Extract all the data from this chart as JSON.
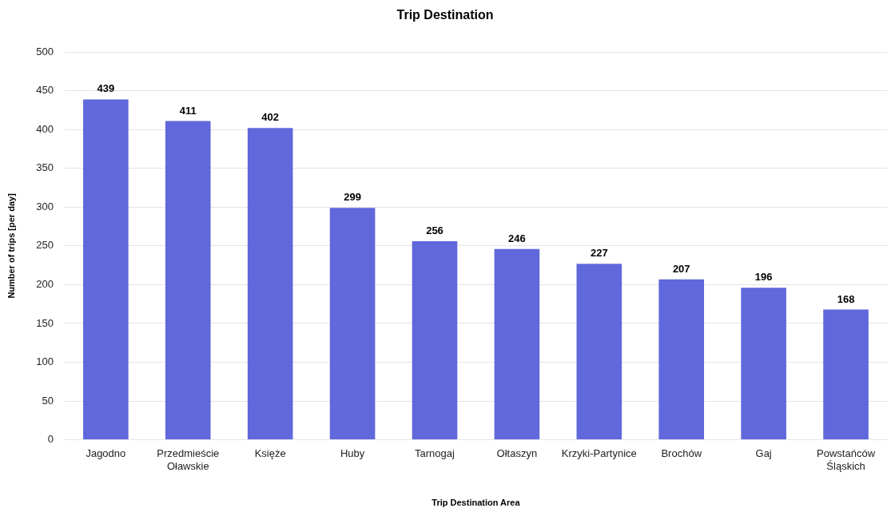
{
  "chart_data": {
    "type": "bar",
    "title": "Trip Destination",
    "xlabel": "Trip Destination Area",
    "ylabel": "Number of trips [per day]",
    "categories": [
      "Jagodno",
      "Przedmieście Oławskie",
      "Księże",
      "Huby",
      "Tarnogaj",
      "Ołtaszyn",
      "Krzyki-Partynice",
      "Brochów",
      "Gaj",
      "Powstańców Śląskich"
    ],
    "values": [
      439,
      411,
      402,
      299,
      256,
      246,
      227,
      207,
      196,
      168
    ],
    "color": "#6068dc",
    "ylim": [
      0,
      500
    ],
    "yticks": [
      0,
      50,
      100,
      150,
      200,
      250,
      300,
      350,
      400,
      450,
      500
    ],
    "grid": "y",
    "data_labels": true
  }
}
